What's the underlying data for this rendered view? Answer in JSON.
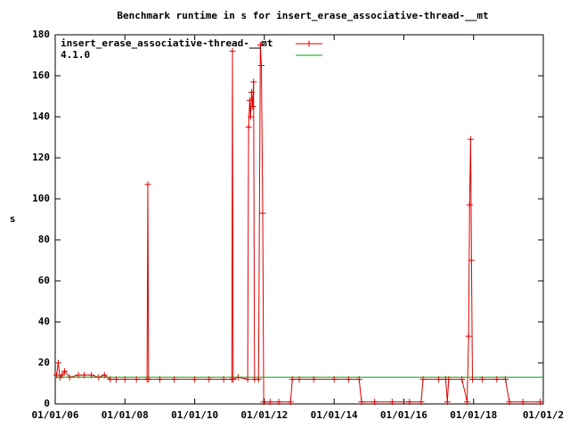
{
  "chart_data": {
    "type": "line",
    "title": "Benchmark runtime in s for insert_erase_associative-thread-__mt",
    "y_label": "s",
    "legend": "top-left",
    "grid": false,
    "xlim": [
      "2006-01-01",
      "2020-01-01"
    ],
    "xticks": [
      {
        "value": "2006-01-01",
        "label": "01/01/06"
      },
      {
        "value": "2008-01-01",
        "label": "01/01/08"
      },
      {
        "value": "2010-01-01",
        "label": "01/01/10"
      },
      {
        "value": "2012-01-01",
        "label": "01/01/12"
      },
      {
        "value": "2014-01-01",
        "label": "01/01/14"
      },
      {
        "value": "2016-01-01",
        "label": "01/01/16"
      },
      {
        "value": "2018-01-01",
        "label": "01/01/18"
      },
      {
        "value": "2020-01-01",
        "label": "01/01/2"
      }
    ],
    "ylim": [
      0,
      180
    ],
    "yticks": [
      0,
      20,
      40,
      60,
      80,
      100,
      120,
      140,
      160,
      180
    ],
    "series": [
      {
        "name": "insert_erase_associative-thread-__mt",
        "color": "#e00000",
        "marker": "+",
        "x": [
          "2006-01-15",
          "2006-02-01",
          "2006-02-20",
          "2006-03-15",
          "2006-04-10",
          "2006-06-01",
          "2006-09-01",
          "2006-11-01",
          "2007-01-15",
          "2007-04-01",
          "2007-06-01",
          "2007-08-01",
          "2007-10-01",
          "2008-01-01",
          "2008-05-01",
          "2008-08-20",
          "2008-08-28",
          "2008-09-05",
          "2009-01-01",
          "2009-06-01",
          "2010-01-01",
          "2010-06-01",
          "2010-11-01",
          "2011-01-25",
          "2011-02-01",
          "2011-02-08",
          "2011-04-01",
          "2011-07-10",
          "2011-07-20",
          "2011-08-01",
          "2011-08-10",
          "2011-08-20",
          "2011-09-01",
          "2011-09-10",
          "2011-09-20",
          "2011-11-01",
          "2011-11-20",
          "2011-12-01",
          "2011-12-15",
          "2011-12-25",
          "2012-03-01",
          "2012-06-01",
          "2012-10-01",
          "2012-10-20",
          "2013-01-01",
          "2013-06-01",
          "2014-01-01",
          "2014-06-01",
          "2014-09-20",
          "2014-10-15",
          "2015-03-01",
          "2015-09-01",
          "2016-03-01",
          "2016-07-01",
          "2016-07-20",
          "2017-01-01",
          "2017-03-15",
          "2017-04-01",
          "2017-04-15",
          "2017-09-01",
          "2017-10-25",
          "2017-11-10",
          "2017-11-20",
          "2017-12-01",
          "2017-12-10",
          "2017-12-20",
          "2018-04-01",
          "2018-09-01",
          "2018-12-01",
          "2019-01-10",
          "2019-06-01",
          "2019-12-01"
        ],
        "values": [
          14,
          20,
          13,
          14,
          16,
          13,
          14,
          14,
          14,
          13,
          14,
          12,
          12,
          12,
          12,
          12,
          107,
          12,
          12,
          12,
          12,
          12,
          12,
          12,
          172,
          12,
          13,
          12,
          135,
          148,
          140,
          152,
          145,
          157,
          12,
          12,
          175,
          165,
          93,
          1,
          1,
          1,
          1,
          12,
          12,
          12,
          12,
          12,
          12,
          1,
          1,
          1,
          1,
          1,
          12,
          12,
          12,
          1,
          12,
          12,
          1,
          33,
          97,
          129,
          70,
          12,
          12,
          12,
          12,
          1,
          1,
          1
        ]
      },
      {
        "name": "4.1.0",
        "color": "#00a000",
        "x": [
          "2006-01-01",
          "2020-01-01"
        ],
        "values": [
          13,
          13
        ]
      }
    ]
  }
}
